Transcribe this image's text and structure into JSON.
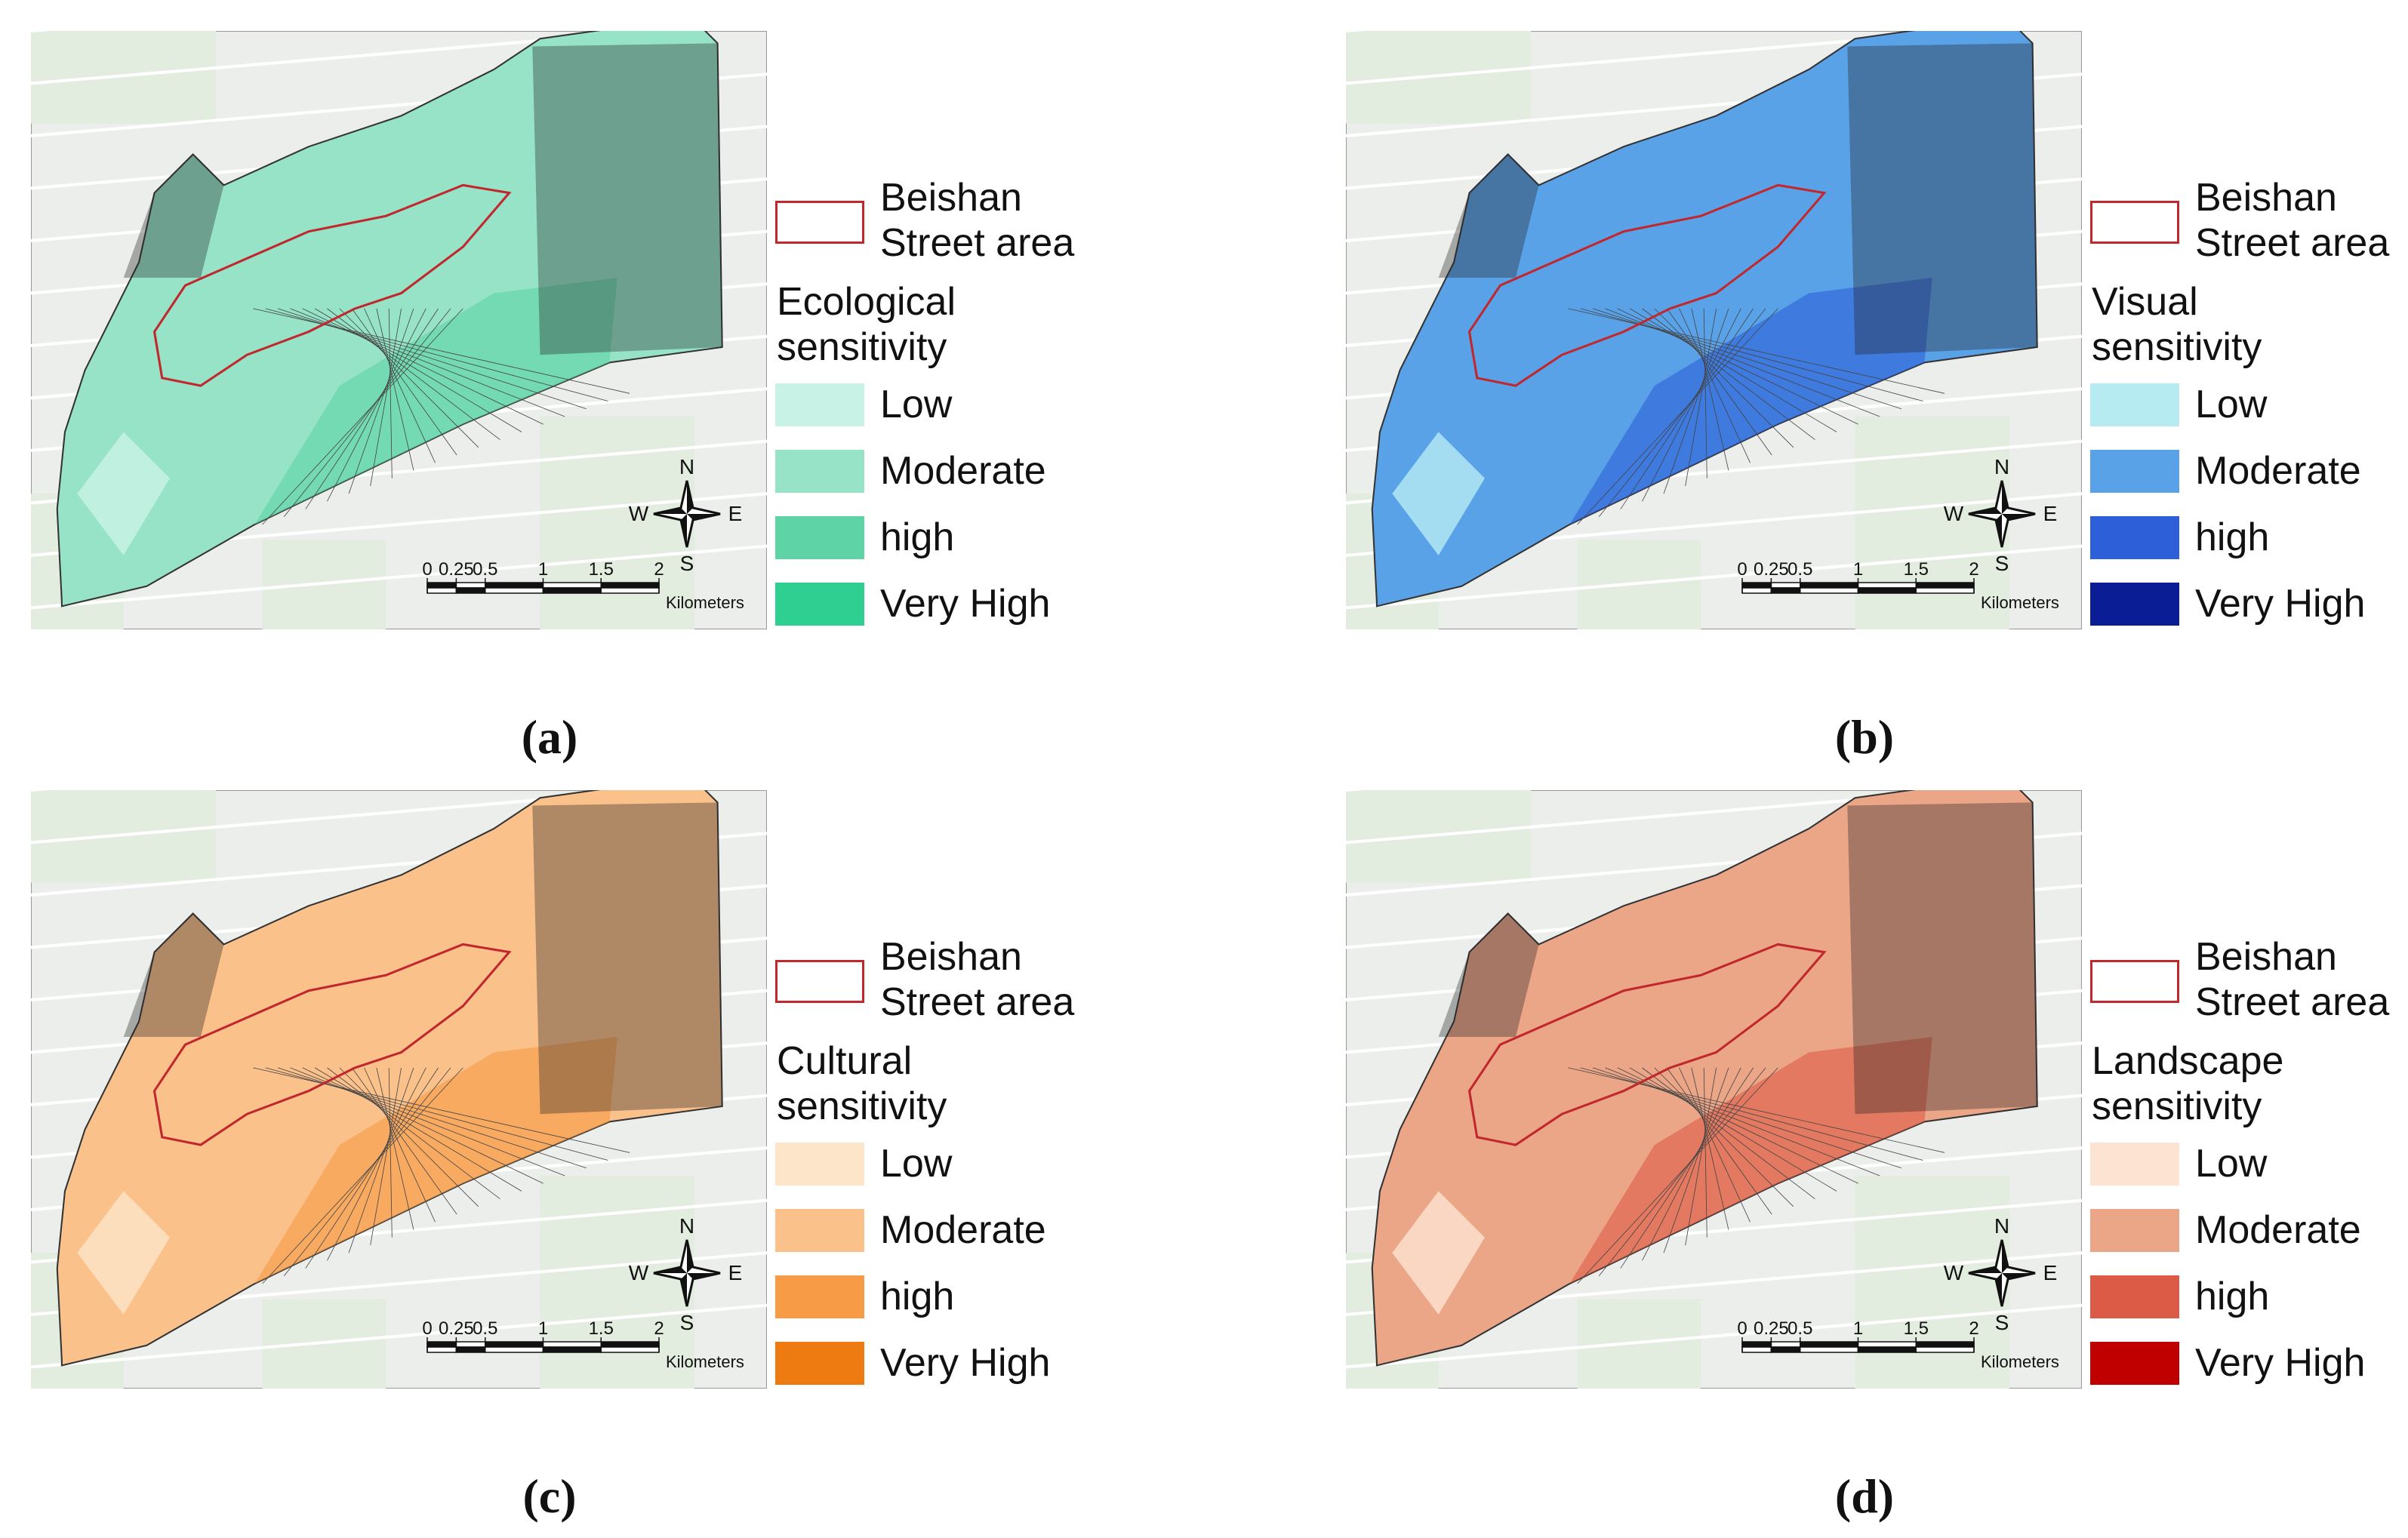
{
  "panels": [
    {
      "label": "(a)",
      "boundary": "Beishan Street area",
      "legend_title": "Ecological sensitivity",
      "classes": [
        {
          "name": "Low",
          "color": "#c9f2e6"
        },
        {
          "name": "Moderate",
          "color": "#96e3c8"
        },
        {
          "name": "high",
          "color": "#5ed3a6"
        },
        {
          "name": "Very High",
          "color": "#2ecf90"
        }
      ],
      "compass": [
        "N",
        "S",
        "W",
        "E"
      ],
      "scale_ticks": [
        0,
        0.25,
        0.5,
        1,
        1.5,
        2
      ],
      "scale_unit": "Kilometers"
    },
    {
      "label": "(b)",
      "boundary": "Beishan Street area",
      "legend_title": "Visual sensitivity",
      "classes": [
        {
          "name": "Low",
          "color": "#b6ebf2"
        },
        {
          "name": "Moderate",
          "color": "#5aa2e8"
        },
        {
          "name": "high",
          "color": "#2d5fd8"
        },
        {
          "name": "Very High",
          "color": "#0b1d94"
        }
      ],
      "compass": [
        "N",
        "S",
        "W",
        "E"
      ],
      "scale_ticks": [
        0,
        0.25,
        0.5,
        1,
        1.5,
        2
      ],
      "scale_unit": "Kilometers"
    },
    {
      "label": "(c)",
      "boundary": "Beishan Street area",
      "legend_title": "Cultural sensitivity",
      "classes": [
        {
          "name": "Low",
          "color": "#fde5c9"
        },
        {
          "name": "Moderate",
          "color": "#fbc18b"
        },
        {
          "name": "high",
          "color": "#f79b46"
        },
        {
          "name": "Very High",
          "color": "#ee7a12"
        }
      ],
      "compass": [
        "N",
        "S",
        "W",
        "E"
      ],
      "scale_ticks": [
        0,
        0.25,
        0.5,
        1,
        1.5,
        2
      ],
      "scale_unit": "Kilometers"
    },
    {
      "label": "(d)",
      "boundary": "Beishan Street area",
      "legend_title": "Landscape sensitivity",
      "classes": [
        {
          "name": "Low",
          "color": "#fde4d2"
        },
        {
          "name": "Moderate",
          "color": "#eba587"
        },
        {
          "name": "high",
          "color": "#dc5b46"
        },
        {
          "name": "Very High",
          "color": "#c00000"
        }
      ],
      "compass": [
        "N",
        "S",
        "W",
        "E"
      ],
      "scale_ticks": [
        0,
        0.25,
        0.5,
        1,
        1.5,
        2
      ],
      "scale_unit": "Kilometers"
    }
  ]
}
